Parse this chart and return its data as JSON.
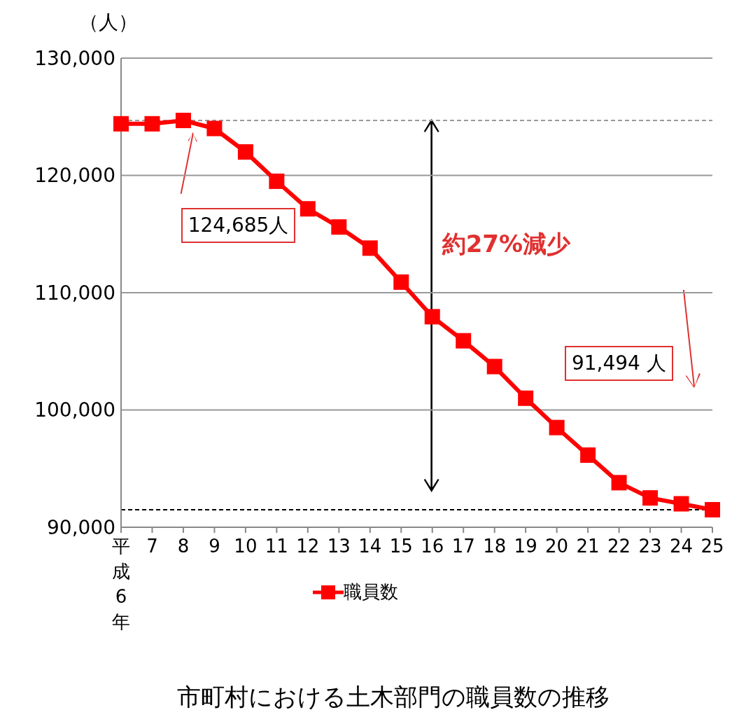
{
  "chart_data": {
    "type": "line",
    "title": "市町村における土木部門の職員数の推移",
    "ylabel": "（人）",
    "categories": [
      "平成6年",
      "7",
      "8",
      "9",
      "10",
      "11",
      "12",
      "13",
      "14",
      "15",
      "16",
      "17",
      "18",
      "19",
      "20",
      "21",
      "22",
      "23",
      "24",
      "25"
    ],
    "series": [
      {
        "name": "職員数",
        "color": "#ff0000",
        "values": [
          124400,
          124400,
          124685,
          124000,
          122000,
          119500,
          117150,
          115600,
          113800,
          110900,
          107950,
          105900,
          103700,
          101000,
          98500,
          96150,
          93800,
          92500,
          92000,
          91494
        ]
      }
    ],
    "ylim": [
      90000,
      130000
    ],
    "yticks": [
      {
        "value": 90000,
        "label": "90,000"
      },
      {
        "value": 100000,
        "label": "100,000"
      },
      {
        "value": 110000,
        "label": "110,000"
      },
      {
        "value": 120000,
        "label": "120,000"
      },
      {
        "value": 130000,
        "label": "130,000"
      }
    ],
    "grid": "y",
    "legend": "bottom",
    "marker": "square",
    "line_style": "solid",
    "ref_lines": [
      {
        "axis": "y",
        "value": 124685,
        "color": "#999999",
        "line_style": "dashed"
      },
      {
        "axis": "y",
        "value": 91494,
        "color": "#000000",
        "line_style": "dashed"
      }
    ],
    "annotations": [
      "124,685人",
      "91,494 人",
      "約27%減少"
    ]
  }
}
